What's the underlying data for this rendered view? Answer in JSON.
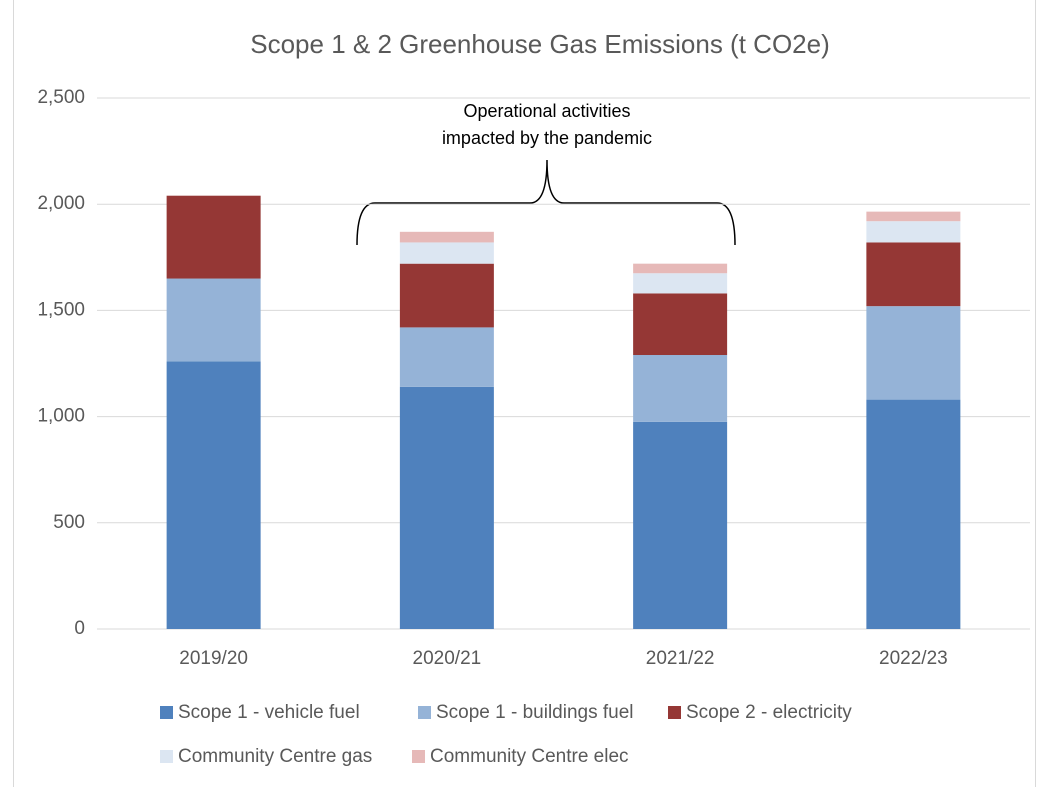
{
  "chart_data": {
    "type": "stacked_bar",
    "title": "Scope 1 & 2 Greenhouse Gas Emissions (t CO2e)",
    "annotation": [
      "Operational activities",
      "impacted by the pandemic"
    ],
    "categories": [
      "2019/20",
      "2020/21",
      "2021/22",
      "2022/23"
    ],
    "series": [
      {
        "name": "Scope 1 - vehicle fuel",
        "color": "#4f81bd",
        "values": [
          1260,
          1140,
          975,
          1080
        ]
      },
      {
        "name": "Scope 1 - buildings fuel",
        "color": "#95b3d7",
        "values": [
          390,
          280,
          315,
          440
        ]
      },
      {
        "name": "Scope 2 - electricity",
        "color": "#953735",
        "values": [
          390,
          300,
          290,
          300
        ]
      },
      {
        "name": "Community Centre gas",
        "color": "#dce6f2",
        "values": [
          0,
          100,
          95,
          100
        ]
      },
      {
        "name": "Community Centre elec",
        "color": "#e6b9b8",
        "values": [
          0,
          50,
          45,
          45
        ]
      }
    ],
    "ylim": [
      0,
      2500
    ],
    "yticks": [
      0,
      {
        "value": 500,
        "label": "500"
      },
      {
        "value": 1000,
        "label": "1,000"
      },
      {
        "value": 1500,
        "label": "1,500"
      },
      {
        "value": 2000,
        "label": "2,000"
      },
      {
        "value": 2500,
        "label": "2,500"
      }
    ],
    "grid": true,
    "legend": "bottom"
  }
}
